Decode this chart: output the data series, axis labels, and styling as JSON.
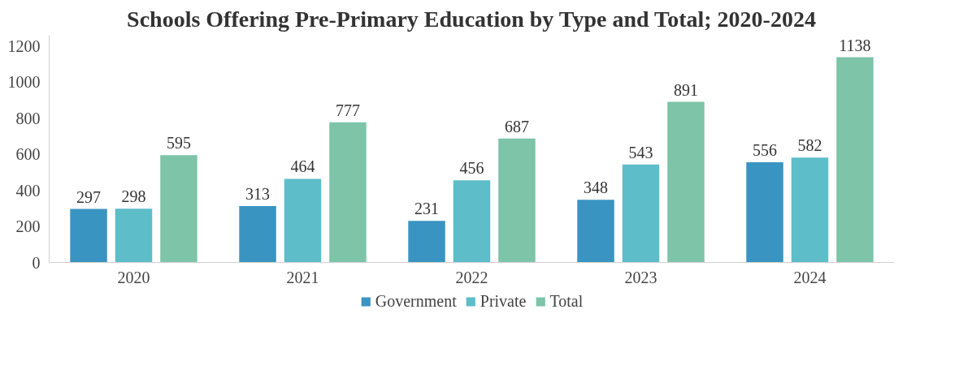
{
  "chart_data": {
    "type": "bar",
    "title": "Schools Offering Pre-Primary Education by Type and Total; 2020-2024",
    "categories": [
      "2020",
      "2021",
      "2022",
      "2023",
      "2024"
    ],
    "series": [
      {
        "name": "Government",
        "color": "#3a94c2",
        "values": [
          297,
          313,
          231,
          348,
          556
        ]
      },
      {
        "name": "Private",
        "color": "#5dbdc9",
        "values": [
          298,
          464,
          456,
          543,
          582
        ]
      },
      {
        "name": "Total",
        "color": "#7dc4a9",
        "values": [
          595,
          777,
          687,
          891,
          1138
        ]
      }
    ],
    "ylim": [
      0,
      1260
    ],
    "yticks": [
      0,
      200,
      400,
      600,
      800,
      1000,
      1200
    ],
    "grid": false,
    "legend": "bottom",
    "data_labels": true
  }
}
